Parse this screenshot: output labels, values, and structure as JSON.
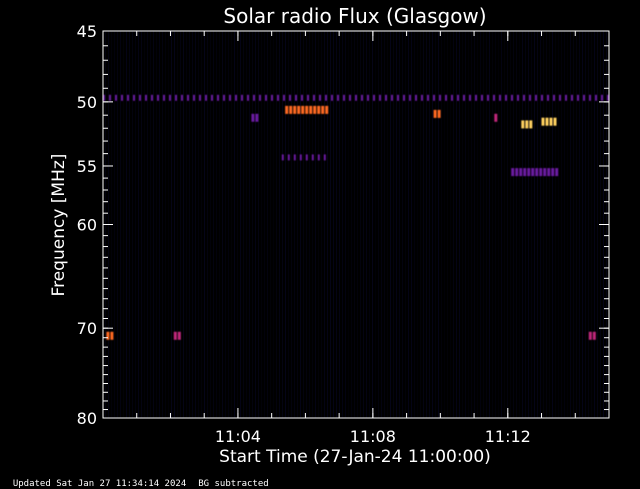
{
  "chart_data": {
    "type": "heatmap",
    "title": "Solar radio Flux (Glasgow)",
    "xlabel": "Start Time (27-Jan-24 11:00:00)",
    "ylabel": "Frequency [MHz]",
    "x_range_minutes": [
      0,
      15
    ],
    "y_range_mhz": [
      45,
      80
    ],
    "y_scale": "log",
    "x_ticks": [
      {
        "value": 4,
        "label": "11:04"
      },
      {
        "value": 8,
        "label": "11:08"
      },
      {
        "value": 12,
        "label": "11:12"
      }
    ],
    "y_ticks": [
      {
        "value": 45,
        "label": "45"
      },
      {
        "value": 50,
        "label": "50"
      },
      {
        "value": 55,
        "label": "55"
      },
      {
        "value": 60,
        "label": "60"
      },
      {
        "value": 70,
        "label": "70"
      },
      {
        "value": 80,
        "label": "80"
      }
    ],
    "colormap": [
      "#000000",
      "#1a1aa0",
      "#6a1aa0",
      "#c0267a",
      "#ff6a20",
      "#ffd060"
    ],
    "features": [
      {
        "type": "band",
        "freq_mhz": 49.7,
        "t_start": 0.0,
        "t_end": 15.0,
        "intensity": 0.35
      },
      {
        "type": "band",
        "freq_mhz": 54.3,
        "t_start": 5.3,
        "t_end": 6.7,
        "intensity": 0.3
      },
      {
        "type": "burst",
        "freq_mhz": 50.6,
        "t_start": 5.4,
        "t_end": 6.7,
        "intensity": 0.7
      },
      {
        "type": "burst",
        "freq_mhz": 50.9,
        "t_start": 9.8,
        "t_end": 10.0,
        "intensity": 0.85
      },
      {
        "type": "burst",
        "freq_mhz": 51.7,
        "t_start": 12.4,
        "t_end": 12.7,
        "intensity": 0.9
      },
      {
        "type": "burst",
        "freq_mhz": 51.5,
        "t_start": 13.0,
        "t_end": 13.4,
        "intensity": 0.9
      },
      {
        "type": "burst",
        "freq_mhz": 51.2,
        "t_start": 11.6,
        "t_end": 11.7,
        "intensity": 0.6
      },
      {
        "type": "burst",
        "freq_mhz": 55.5,
        "t_start": 12.1,
        "t_end": 13.5,
        "intensity": 0.3
      },
      {
        "type": "burst",
        "freq_mhz": 70.8,
        "t_start": 0.1,
        "t_end": 0.3,
        "intensity": 0.7
      },
      {
        "type": "burst",
        "freq_mhz": 70.8,
        "t_start": 2.1,
        "t_end": 2.3,
        "intensity": 0.6
      },
      {
        "type": "burst",
        "freq_mhz": 70.8,
        "t_start": 14.4,
        "t_end": 14.6,
        "intensity": 0.6
      },
      {
        "type": "burst",
        "freq_mhz": 51.2,
        "t_start": 4.4,
        "t_end": 4.6,
        "intensity": 0.3
      }
    ]
  },
  "footer": {
    "updated": "Updated Sat Jan 27 11:34:14 2024",
    "bg_note": "BG subtracted"
  }
}
